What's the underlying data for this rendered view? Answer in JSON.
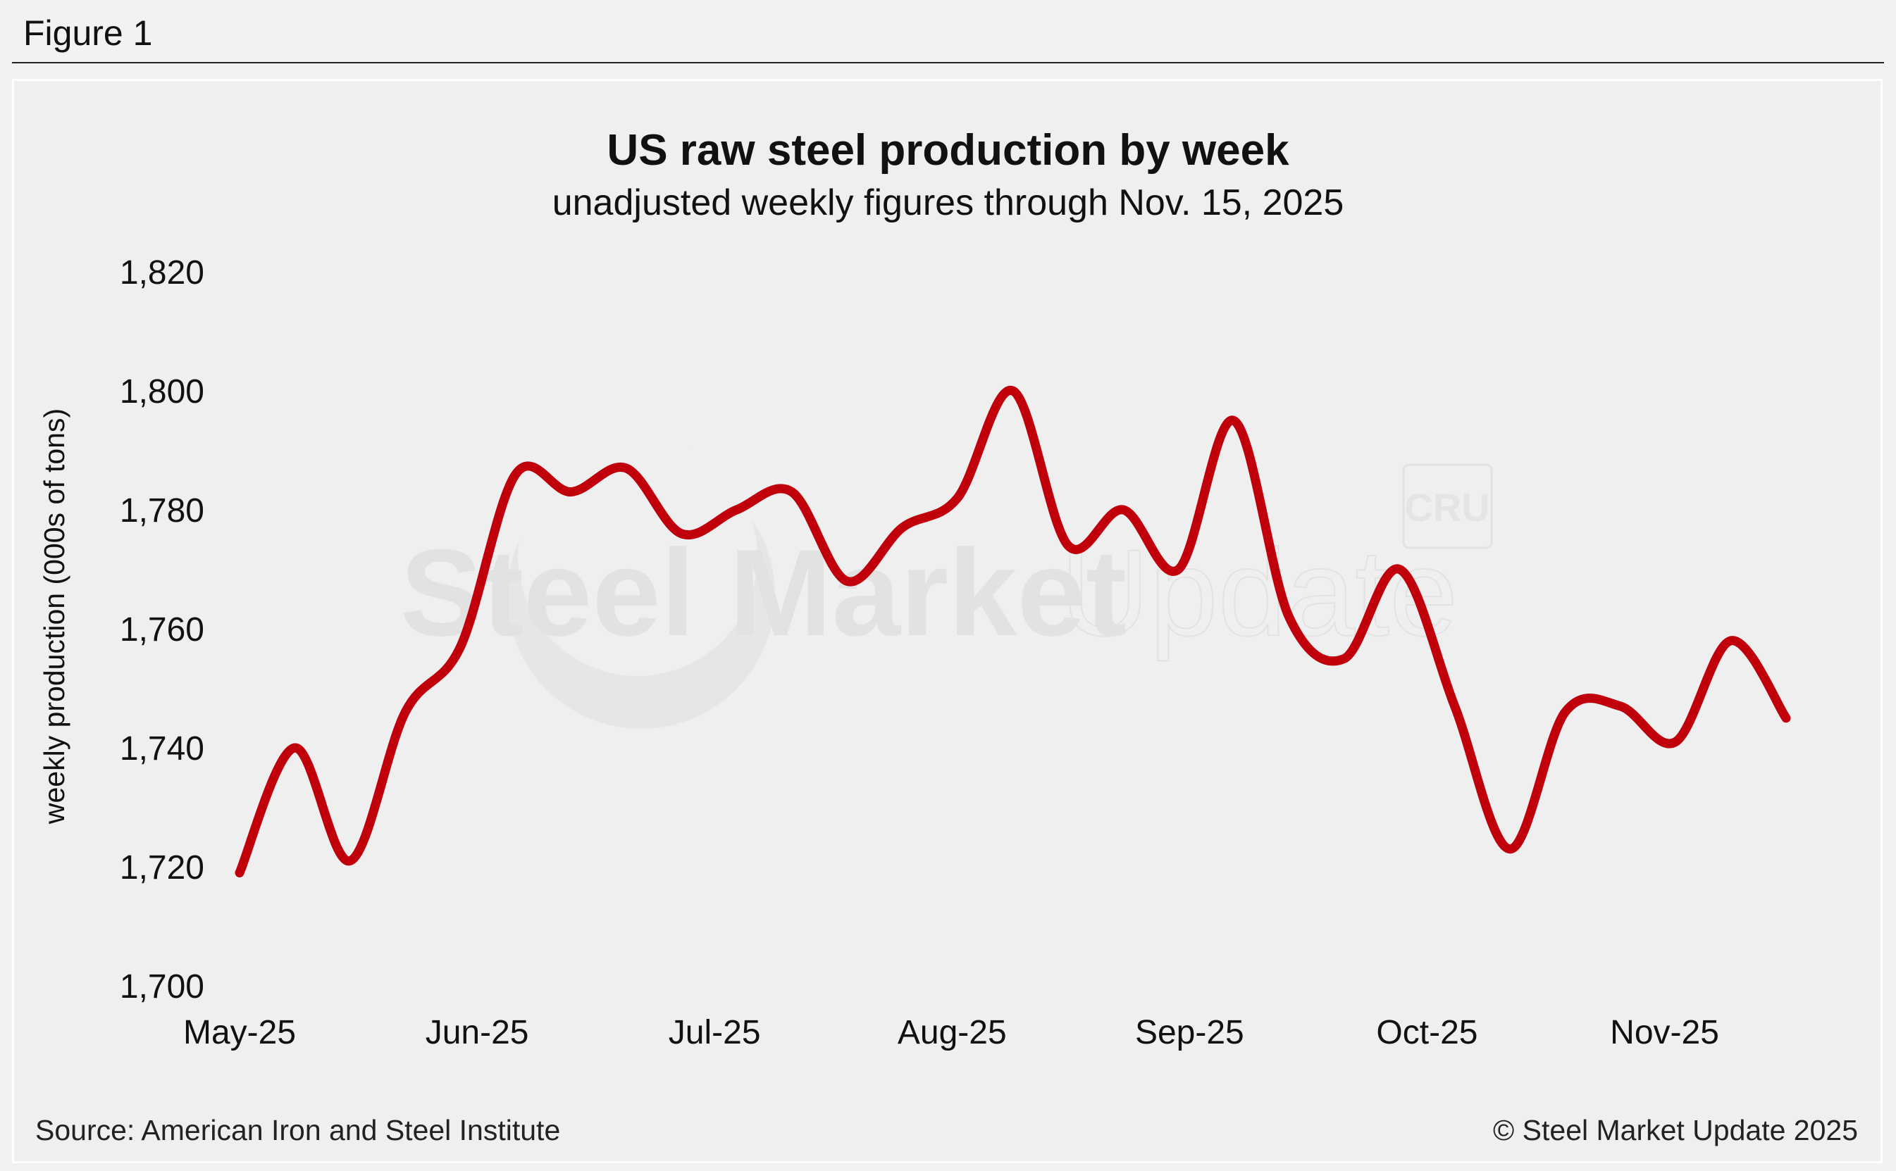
{
  "figure_label": "Figure 1",
  "footer": {
    "source": "Source: American Iron and Steel Institute",
    "copyright": "© Steel Market Update 2025"
  },
  "watermark": {
    "brand_bold": "Steel Market",
    "brand_light": "Update",
    "badge": "CRU"
  },
  "colors": {
    "line": "#c0000b",
    "background": "#efefef",
    "text": "#111111",
    "watermark": "#e2e2e2"
  },
  "chart_data": {
    "type": "line",
    "title": "US raw steel production by week",
    "subtitle": "unadjusted weekly figures through Nov. 15, 2025",
    "xlabel": "",
    "ylabel": "weekly production (000s of tons)",
    "ylim": [
      1700,
      1820
    ],
    "yticks": [
      1700,
      1720,
      1740,
      1760,
      1780,
      1800,
      1820
    ],
    "ytick_labels": [
      "1,700",
      "1,720",
      "1,740",
      "1,760",
      "1,780",
      "1,800",
      "1,820"
    ],
    "x_tick_labels": [
      "May-25",
      "Jun-25",
      "Jul-25",
      "Aug-25",
      "Sep-25",
      "Oct-25",
      "Nov-25"
    ],
    "x_tick_positions": [
      0,
      4.3,
      8.6,
      12.9,
      17.2,
      21.5,
      25.8
    ],
    "grid": false,
    "legend": "none",
    "series": [
      {
        "name": "US raw steel production",
        "color": "#c0000b",
        "x": [
          0,
          1,
          2,
          3,
          4,
          5,
          6,
          7,
          8,
          9,
          10,
          11,
          12,
          13,
          14,
          15,
          16,
          17,
          18,
          19,
          20,
          21,
          22,
          23,
          24,
          25,
          26,
          27,
          28
        ],
        "values": [
          1719,
          1740,
          1721,
          1746,
          1757,
          1786,
          1783,
          1787,
          1776,
          1780,
          1783,
          1768,
          1777,
          1782,
          1800,
          1774,
          1780,
          1770,
          1795,
          1762,
          1755,
          1770,
          1747,
          1723,
          1746,
          1747,
          1741,
          1758,
          1745
        ]
      }
    ]
  }
}
